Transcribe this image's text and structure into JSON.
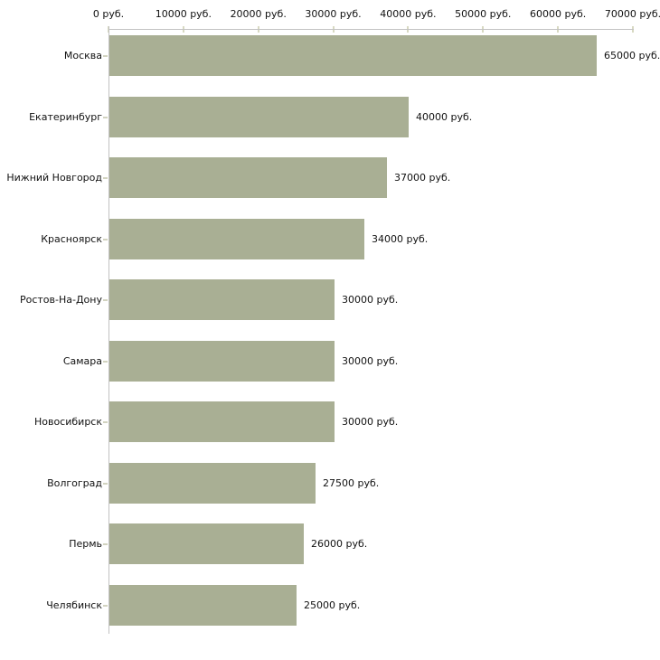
{
  "chart_data": {
    "type": "bar",
    "orientation": "horizontal",
    "title": "",
    "xlabel": "",
    "ylabel": "",
    "unit_suffix": " руб.",
    "categories": [
      "Москва",
      "Екатеринбург",
      "Нижний Новгород",
      "Красноярск",
      "Ростов-На-Дону",
      "Самара",
      "Новосибирск",
      "Волгоград",
      "Пермь",
      "Челябинск"
    ],
    "values": [
      65000,
      40000,
      37000,
      34000,
      30000,
      30000,
      30000,
      27500,
      26000,
      25000
    ],
    "bar_labels": [
      "65000 руб.",
      "40000 руб.",
      "37000 руб.",
      "34000 руб.",
      "30000 руб.",
      "30000 руб.",
      "30000 руб.",
      "27500 руб.",
      "26000 руб.",
      "25000 руб."
    ],
    "x_axis": {
      "position": "top",
      "min": 0,
      "max": 70000,
      "tick_step": 10000,
      "tick_values": [
        0,
        10000,
        20000,
        30000,
        40000,
        50000,
        60000,
        70000
      ],
      "tick_labels": [
        "0 руб.",
        "10000 руб.",
        "20000 руб.",
        "30000 руб.",
        "40000 руб.",
        "50000 руб.",
        "60000 руб.",
        "70000 руб."
      ]
    },
    "grid": false,
    "legend": false,
    "colors": {
      "bar": "#a9af94",
      "axis_line": "#c2c2c2",
      "axis_tick": "#d8d9c2",
      "category_tick": "#d2d3c0",
      "text": "#111111",
      "background": "#ffffff"
    }
  }
}
